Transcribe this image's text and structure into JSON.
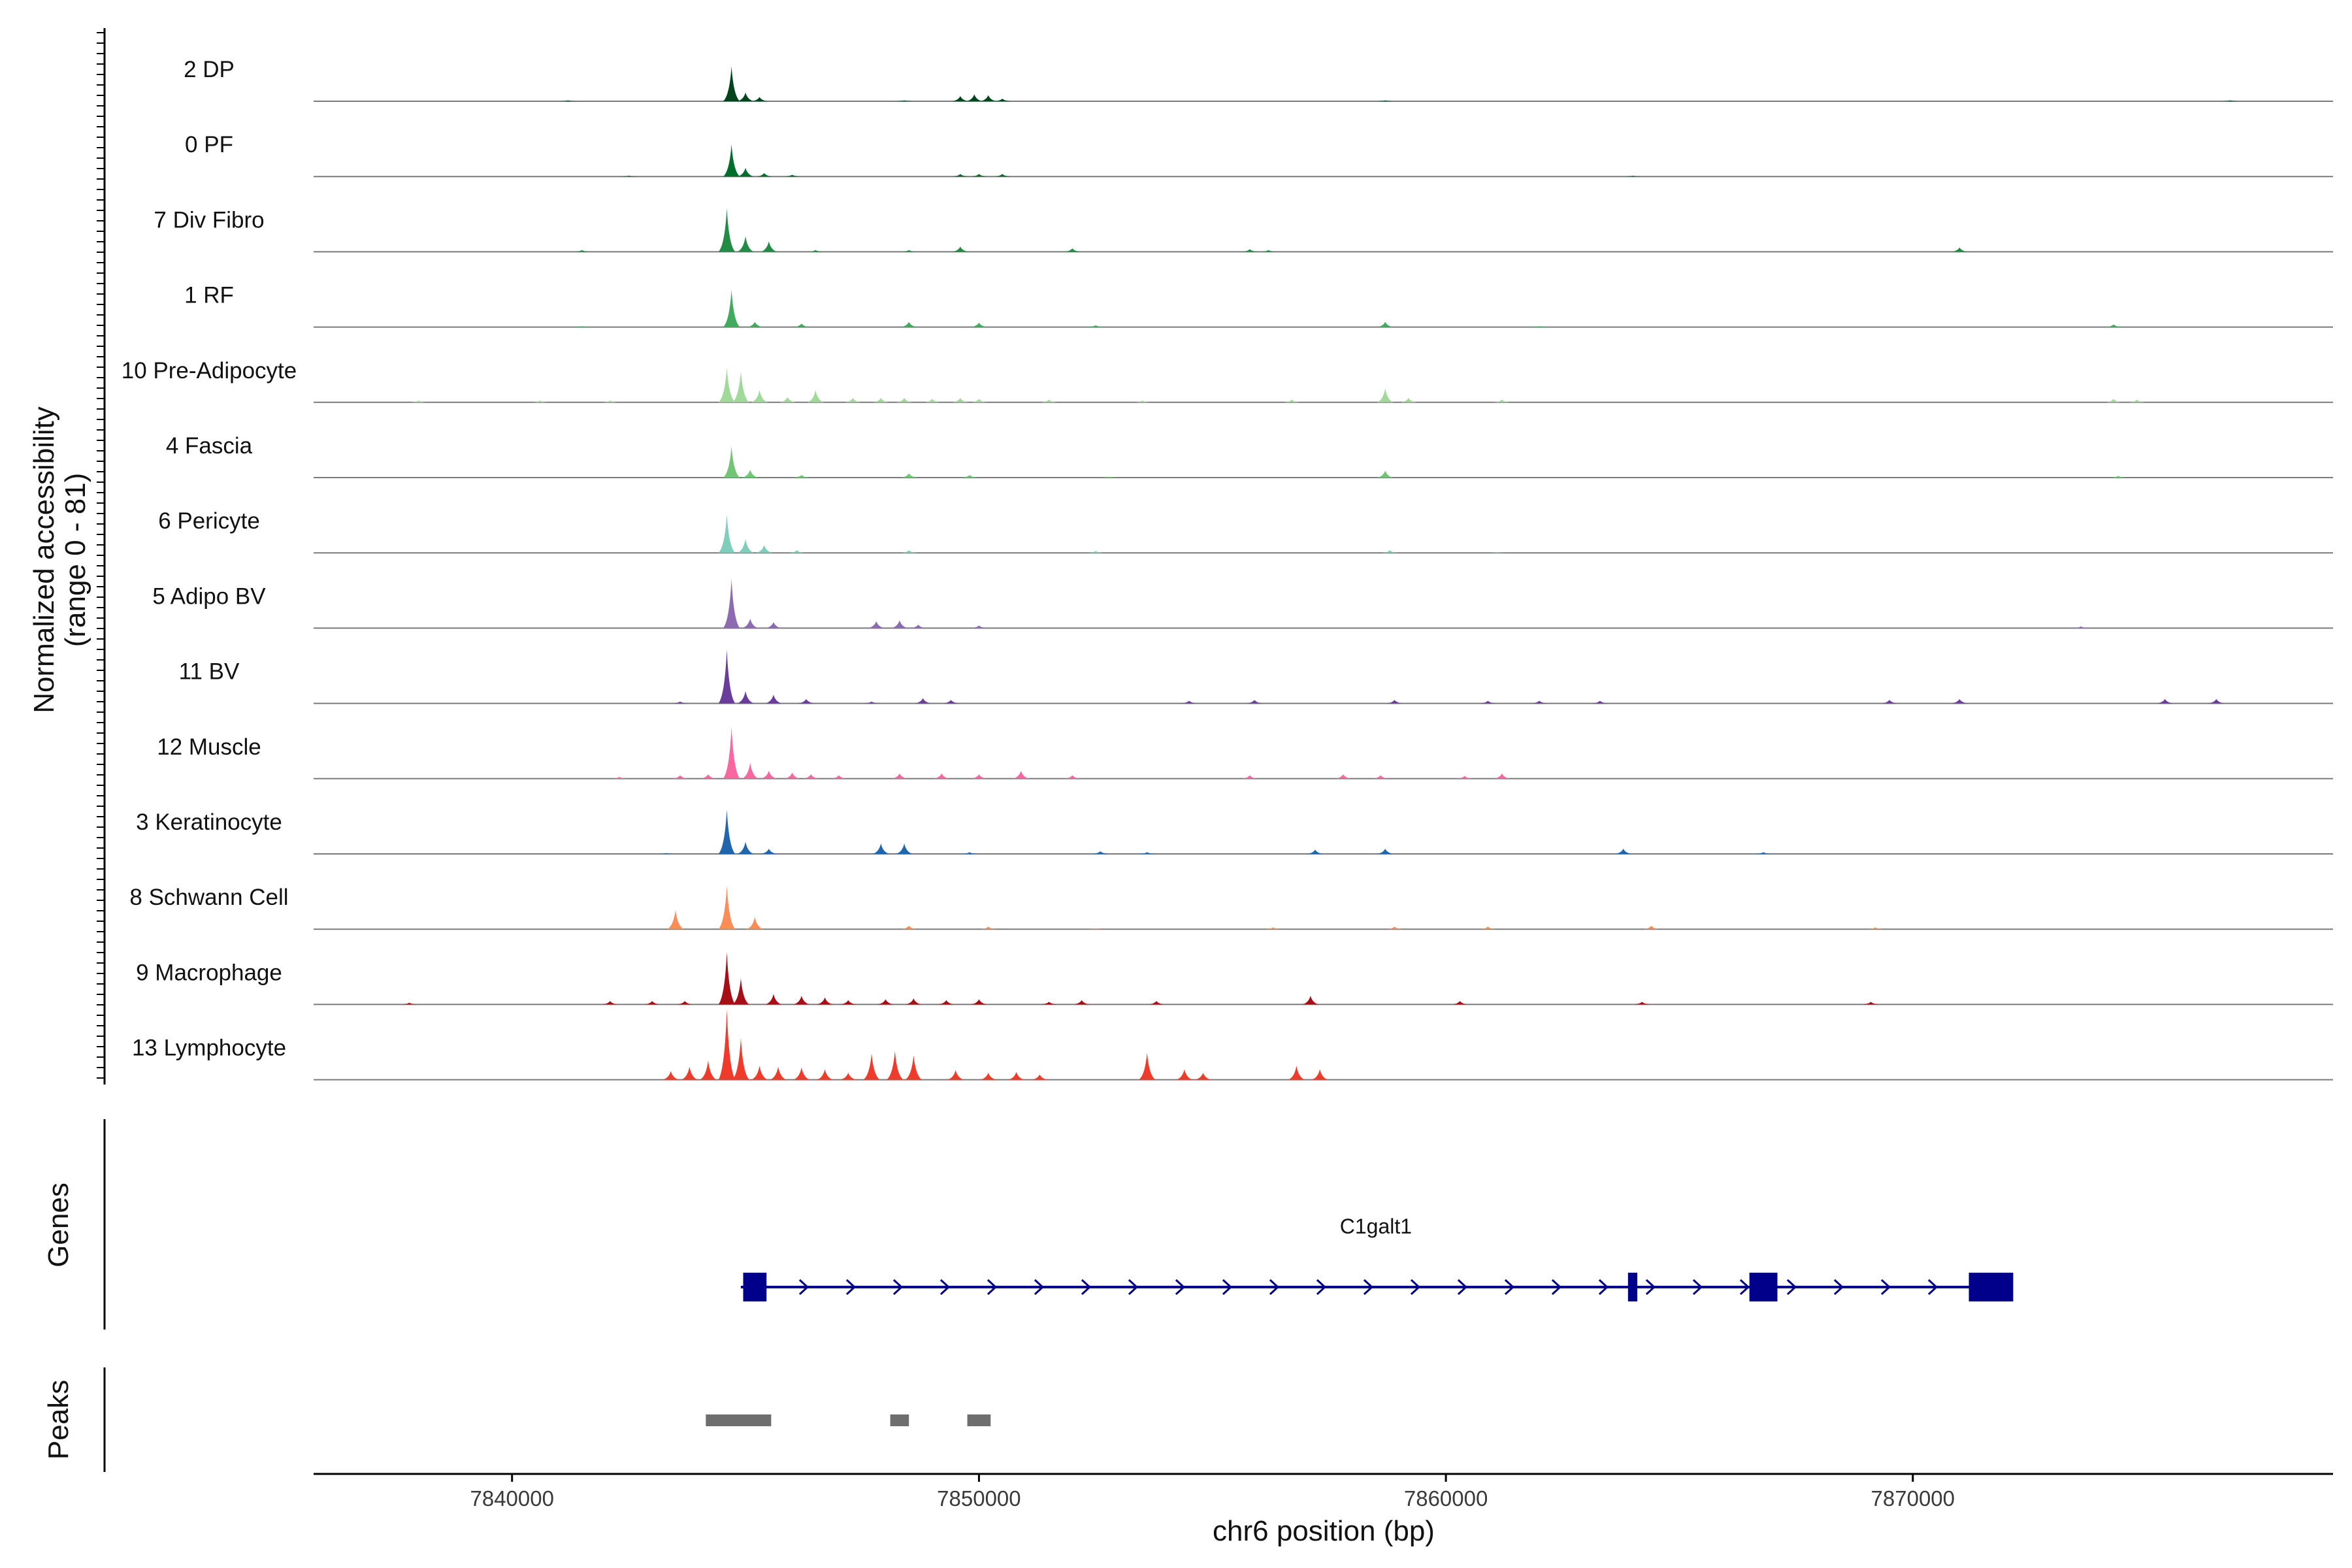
{
  "chart_data": {
    "type": "area",
    "title": "",
    "ylabel_line1": "Normalized accessibility",
    "ylabel_line2": "(range 0 - 81)",
    "y_range": [
      0,
      81
    ],
    "xlabel": "chr6 position (bp)",
    "x_range": [
      7835750,
      7879000
    ],
    "x_ticks": [
      7840000,
      7850000,
      7860000,
      7870000
    ],
    "x_tick_labels": [
      "7840000",
      "7850000",
      "7860000",
      "7870000"
    ],
    "peak_shape_width_bp": 180,
    "tracks": [
      {
        "name": "2 DP",
        "color": "#00441b",
        "peaks": [
          [
            7844700,
            40
          ],
          [
            7845000,
            10
          ],
          [
            7845300,
            5
          ],
          [
            7849600,
            6
          ],
          [
            7849900,
            8
          ],
          [
            7850200,
            7
          ],
          [
            7850500,
            3
          ],
          [
            7841200,
            1
          ],
          [
            7848400,
            1
          ],
          [
            7858700,
            1
          ],
          [
            7876800,
            1
          ]
        ]
      },
      {
        "name": "0 PF",
        "color": "#006d2c",
        "peaks": [
          [
            7844700,
            37
          ],
          [
            7845000,
            10
          ],
          [
            7845400,
            4
          ],
          [
            7849600,
            3
          ],
          [
            7850000,
            3
          ],
          [
            7850500,
            3
          ],
          [
            7846000,
            2
          ],
          [
            7842500,
            1
          ],
          [
            7864000,
            1
          ]
        ]
      },
      {
        "name": "7 Div Fibro",
        "color": "#238b45",
        "peaks": [
          [
            7844600,
            50
          ],
          [
            7845000,
            18
          ],
          [
            7845500,
            12
          ],
          [
            7849600,
            6
          ],
          [
            7852000,
            4
          ],
          [
            7855800,
            3
          ],
          [
            7871000,
            5
          ],
          [
            7841500,
            2
          ],
          [
            7846500,
            2
          ],
          [
            7848500,
            2
          ],
          [
            7856200,
            2
          ]
        ]
      },
      {
        "name": "1 RF",
        "color": "#41ab5d",
        "peaks": [
          [
            7844700,
            43
          ],
          [
            7845200,
            6
          ],
          [
            7846200,
            4
          ],
          [
            7848500,
            6
          ],
          [
            7850000,
            5
          ],
          [
            7858700,
            6
          ],
          [
            7874300,
            3
          ],
          [
            7852500,
            2
          ],
          [
            7841500,
            1
          ],
          [
            7862000,
            1
          ]
        ]
      },
      {
        "name": "10 Pre-Adipocyte",
        "color": "#a1d99b",
        "peaks": [
          [
            7844600,
            40
          ],
          [
            7844900,
            36
          ],
          [
            7845300,
            14
          ],
          [
            7845900,
            6
          ],
          [
            7846500,
            14
          ],
          [
            7847300,
            5
          ],
          [
            7847900,
            5
          ],
          [
            7848400,
            5
          ],
          [
            7849000,
            4
          ],
          [
            7849600,
            5
          ],
          [
            7850000,
            4
          ],
          [
            7851500,
            3
          ],
          [
            7853500,
            2
          ],
          [
            7856700,
            3
          ],
          [
            7858700,
            16
          ],
          [
            7859200,
            5
          ],
          [
            7861200,
            3
          ],
          [
            7874300,
            4
          ],
          [
            7874800,
            3
          ],
          [
            7838000,
            2
          ],
          [
            7840600,
            2
          ],
          [
            7842100,
            2
          ]
        ]
      },
      {
        "name": "4 Fascia",
        "color": "#74c476",
        "peaks": [
          [
            7844700,
            36
          ],
          [
            7845100,
            9
          ],
          [
            7848500,
            5
          ],
          [
            7849800,
            3
          ],
          [
            7858700,
            8
          ],
          [
            7846200,
            3
          ],
          [
            7874400,
            2
          ],
          [
            7852800,
            1
          ]
        ]
      },
      {
        "name": "6 Pericyte",
        "color": "#7fcdbb",
        "peaks": [
          [
            7844600,
            44
          ],
          [
            7845000,
            16
          ],
          [
            7845400,
            9
          ],
          [
            7846100,
            3
          ],
          [
            7848500,
            3
          ],
          [
            7858800,
            3
          ],
          [
            7852500,
            2
          ],
          [
            7861100,
            1
          ]
        ]
      },
      {
        "name": "5 Adipo BV",
        "color": "#8c6bb1",
        "peaks": [
          [
            7844700,
            57
          ],
          [
            7845100,
            11
          ],
          [
            7845600,
            7
          ],
          [
            7847800,
            8
          ],
          [
            7848300,
            9
          ],
          [
            7848700,
            4
          ],
          [
            7850000,
            3
          ],
          [
            7873600,
            2
          ]
        ]
      },
      {
        "name": "11 BV",
        "color": "#6a3d9a",
        "peaks": [
          [
            7844600,
            62
          ],
          [
            7845000,
            14
          ],
          [
            7845600,
            10
          ],
          [
            7846300,
            5
          ],
          [
            7848800,
            6
          ],
          [
            7849400,
            4
          ],
          [
            7854500,
            3
          ],
          [
            7855900,
            4
          ],
          [
            7858900,
            4
          ],
          [
            7860900,
            3
          ],
          [
            7862000,
            3
          ],
          [
            7863300,
            3
          ],
          [
            7869500,
            4
          ],
          [
            7871000,
            5
          ],
          [
            7875400,
            5
          ],
          [
            7876500,
            5
          ],
          [
            7843600,
            2
          ],
          [
            7847700,
            2
          ]
        ]
      },
      {
        "name": "12 Muscle",
        "color": "#f768a1",
        "peaks": [
          [
            7844700,
            60
          ],
          [
            7845100,
            18
          ],
          [
            7845500,
            9
          ],
          [
            7846000,
            7
          ],
          [
            7846400,
            5
          ],
          [
            7847000,
            4
          ],
          [
            7848300,
            6
          ],
          [
            7849200,
            6
          ],
          [
            7850000,
            5
          ],
          [
            7850900,
            9
          ],
          [
            7852000,
            4
          ],
          [
            7855800,
            4
          ],
          [
            7857800,
            5
          ],
          [
            7858600,
            4
          ],
          [
            7860400,
            3
          ],
          [
            7861200,
            6
          ],
          [
            7842300,
            2
          ],
          [
            7843600,
            4
          ],
          [
            7844200,
            5
          ]
        ]
      },
      {
        "name": "3 Keratinocyte",
        "color": "#2166ac",
        "peaks": [
          [
            7844600,
            51
          ],
          [
            7845000,
            14
          ],
          [
            7845500,
            6
          ],
          [
            7847900,
            12
          ],
          [
            7848400,
            12
          ],
          [
            7852600,
            3
          ],
          [
            7853600,
            2
          ],
          [
            7857200,
            5
          ],
          [
            7858700,
            6
          ],
          [
            7863800,
            6
          ],
          [
            7866800,
            2
          ],
          [
            7849800,
            2
          ],
          [
            7843300,
            1
          ]
        ]
      },
      {
        "name": "8 Schwann Cell",
        "color": "#fc8d59",
        "peaks": [
          [
            7843500,
            22
          ],
          [
            7844600,
            50
          ],
          [
            7845200,
            14
          ],
          [
            7848500,
            4
          ],
          [
            7850200,
            3
          ],
          [
            7856300,
            2
          ],
          [
            7858900,
            3
          ],
          [
            7860900,
            3
          ],
          [
            7864400,
            4
          ],
          [
            7869200,
            2
          ],
          [
            7852500,
            1
          ]
        ]
      },
      {
        "name": "9 Macrophage",
        "color": "#a50f15",
        "peaks": [
          [
            7844600,
            60
          ],
          [
            7844900,
            30
          ],
          [
            7845600,
            12
          ],
          [
            7846200,
            10
          ],
          [
            7846700,
            8
          ],
          [
            7847200,
            5
          ],
          [
            7848000,
            6
          ],
          [
            7848600,
            7
          ],
          [
            7849300,
            5
          ],
          [
            7850000,
            6
          ],
          [
            7851500,
            3
          ],
          [
            7852200,
            5
          ],
          [
            7853800,
            4
          ],
          [
            7857100,
            10
          ],
          [
            7860300,
            4
          ],
          [
            7864200,
            3
          ],
          [
            7869100,
            3
          ],
          [
            7837800,
            2
          ],
          [
            7842100,
            4
          ],
          [
            7843000,
            4
          ],
          [
            7843700,
            4
          ]
        ]
      },
      {
        "name": "13 Lymphocyte",
        "color": "#ef3b2c",
        "peaks": [
          [
            7844600,
            81
          ],
          [
            7844900,
            48
          ],
          [
            7844200,
            22
          ],
          [
            7843800,
            15
          ],
          [
            7845300,
            16
          ],
          [
            7845700,
            15
          ],
          [
            7846200,
            14
          ],
          [
            7846700,
            12
          ],
          [
            7847200,
            8
          ],
          [
            7847700,
            30
          ],
          [
            7848200,
            33
          ],
          [
            7848600,
            28
          ],
          [
            7849500,
            11
          ],
          [
            7850200,
            8
          ],
          [
            7850800,
            9
          ],
          [
            7851300,
            6
          ],
          [
            7853600,
            31
          ],
          [
            7854400,
            12
          ],
          [
            7854800,
            8
          ],
          [
            7856800,
            16
          ],
          [
            7857300,
            12
          ],
          [
            7843400,
            10
          ]
        ]
      }
    ],
    "genes": [
      {
        "name": "C1galt1",
        "start": 7844900,
        "end": 7872100,
        "strand": "+",
        "exons": [
          [
            7844950,
            7845450
          ],
          [
            7863900,
            7864100
          ],
          [
            7866500,
            7867100
          ],
          [
            7871200,
            7872150
          ]
        ]
      }
    ],
    "peak_regions": [
      [
        7844150,
        7845550
      ],
      [
        7848100,
        7848500
      ],
      [
        7849750,
        7850250
      ]
    ],
    "colors": {
      "gene": "#00008b",
      "peak_region": "#6e6e6e",
      "baseline": "#7a7a7a",
      "axis": "#000000"
    }
  },
  "panels": {
    "genes_title": "Genes",
    "peaks_title": "Peaks"
  }
}
